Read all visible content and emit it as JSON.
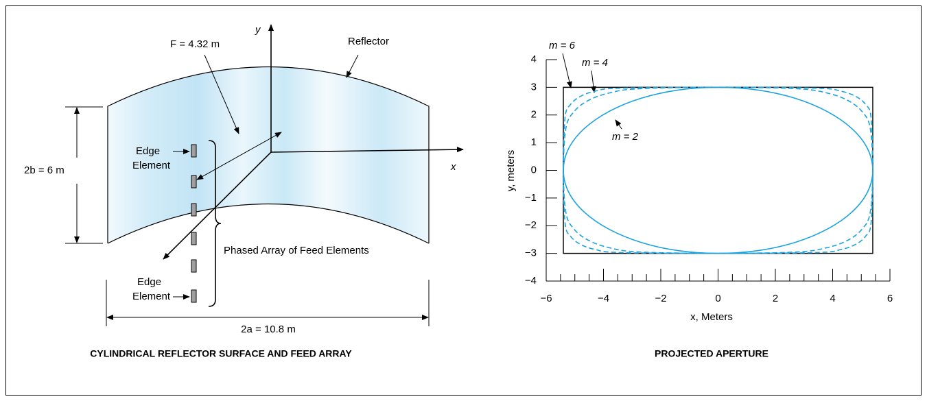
{
  "diagram": {
    "title": "CYLINDRICAL REFLECTOR SURFACE AND FEED ARRAY",
    "focal_label": "F = 4.32 m",
    "y_axis": "y",
    "x_axis": "x",
    "reflector": "Reflector",
    "height_label": "2b = 6 m",
    "width_label": "2a = 10.8 m",
    "edge_top": [
      "Edge",
      "Element"
    ],
    "edge_bottom": [
      "Edge",
      "Element"
    ],
    "array_label": "Phased Array of Feed Elements"
  },
  "chart_data": {
    "type": "line",
    "title": "PROJECTED APERTURE",
    "x_label": "x, Meters",
    "y_label": "y, meters",
    "xlim": [
      -6,
      6
    ],
    "ylim": [
      -4,
      4
    ],
    "xticks": [
      {
        "value": -6,
        "label": "−6"
      },
      {
        "value": -4,
        "label": "−4"
      },
      {
        "value": -2,
        "label": "−2"
      },
      0,
      2,
      4,
      6
    ],
    "xminorticks": [
      -5.5,
      -5,
      -4.5,
      -3.5,
      -3,
      -2.5,
      -1.5,
      -1,
      -0.5,
      0.5,
      1,
      1.5,
      2.5,
      3,
      3.5,
      4.5,
      5,
      5.5
    ],
    "yticks": [
      {
        "value": -4,
        "label": "−4"
      },
      {
        "value": -3,
        "label": "−3"
      },
      {
        "value": -2,
        "label": "−2"
      },
      {
        "value": -1,
        "label": "−1"
      },
      0,
      1,
      2,
      3,
      4
    ],
    "series": [
      {
        "color": "#000000",
        "dashed": false,
        "smooth": false,
        "x": [
          -5.4,
          5.4,
          5.4,
          -5.4
        ],
        "values": [
          3,
          3,
          -3,
          -3
        ]
      },
      {
        "name": "m = 2",
        "color": "#1aa3dc",
        "dashed": false,
        "smooth": true,
        "x": [
          5.4,
          5.22,
          4.68,
          3.82,
          2.7,
          1.4,
          0,
          -1.4,
          -2.7,
          -3.82,
          -4.68,
          -5.22,
          -5.4,
          -5.22,
          -4.68,
          -3.82,
          -2.7,
          -1.4,
          0,
          1.4,
          2.7,
          3.82,
          4.68,
          5.22
        ],
        "values": [
          0,
          0.78,
          1.5,
          2.12,
          2.6,
          2.9,
          3,
          2.9,
          2.6,
          2.12,
          1.5,
          0.78,
          0,
          -0.78,
          -1.5,
          -2.12,
          -2.6,
          -2.9,
          -3,
          -2.9,
          -2.6,
          -2.12,
          -1.5,
          -0.78
        ]
      },
      {
        "name": "m = 4",
        "color": "#1aa3dc",
        "dashed": true,
        "smooth": true,
        "x": [
          5.4,
          5.31,
          5.03,
          4.54,
          3.82,
          2.75,
          0,
          -2.75,
          -3.82,
          -4.54,
          -5.03,
          -5.31,
          -5.4,
          -5.31,
          -5.03,
          -4.54,
          -3.82,
          -2.75,
          0,
          2.75,
          3.82,
          4.54,
          5.03,
          5.31
        ],
        "values": [
          0,
          1.53,
          2.12,
          2.52,
          2.79,
          2.95,
          3,
          2.95,
          2.79,
          2.52,
          2.12,
          1.53,
          0,
          -1.53,
          -2.12,
          -2.52,
          -2.79,
          -2.95,
          -3,
          -2.95,
          -2.79,
          -2.52,
          -2.12,
          -1.53
        ]
      },
      {
        "name": "m = 6",
        "color": "#1aa3dc",
        "dashed": true,
        "smooth": true,
        "x": [
          5.4,
          5.34,
          5.15,
          4.81,
          4.29,
          3.44,
          0,
          -3.44,
          -4.29,
          -4.81,
          -5.15,
          -5.34,
          -5.4,
          -5.34,
          -5.15,
          -4.81,
          -4.29,
          -3.44,
          0,
          3.44,
          4.29,
          4.81,
          5.15,
          5.34
        ],
        "values": [
          0,
          1.91,
          2.38,
          2.67,
          2.86,
          2.97,
          3,
          2.97,
          2.86,
          2.67,
          2.38,
          1.91,
          0,
          -1.91,
          -2.38,
          -2.67,
          -2.86,
          -2.97,
          -3,
          -2.97,
          -2.86,
          -2.67,
          -2.38,
          -1.91
        ]
      }
    ]
  }
}
